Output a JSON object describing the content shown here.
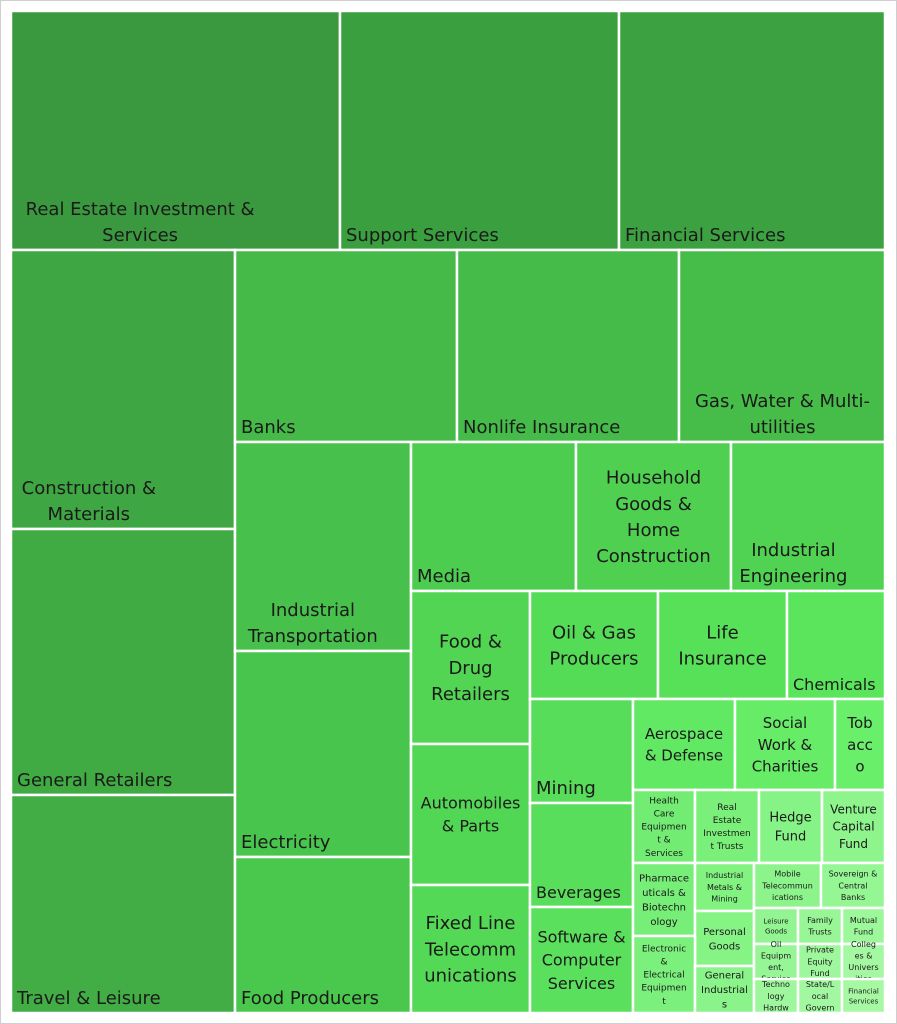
{
  "chart_data": {
    "type": "treemap",
    "colors": {
      "dark": "#3a993e",
      "light": "#a6f5a3",
      "border": "#ffffff",
      "text": "#1a1a1a"
    },
    "items": [
      {
        "label": "Real Estate Investment & Services",
        "color": "#3a993e"
      },
      {
        "label": "Support Services",
        "color": "#3a9f3f"
      },
      {
        "label": "Financial Services",
        "color": "#3ca140"
      },
      {
        "label": "Construction & Materials",
        "color": "#3ea642"
      },
      {
        "label": "General Retailers",
        "color": "#40aa43"
      },
      {
        "label": "Travel & Leisure",
        "color": "#41ad44"
      },
      {
        "label": "Banks",
        "color": "#45ba48"
      },
      {
        "label": "Nonlife Insurance",
        "color": "#45bc49"
      },
      {
        "label": "Gas, Water & Multi-utilities",
        "color": "#46bd49"
      },
      {
        "label": "Industrial Transportation",
        "color": "#47c14b"
      },
      {
        "label": "Electricity",
        "color": "#48c54c"
      },
      {
        "label": "Food Producers",
        "color": "#4ac84d"
      },
      {
        "label": "Media",
        "color": "#4dcd50"
      },
      {
        "label": "Household Goods & Home Construction",
        "color": "#4fd051"
      },
      {
        "label": "Industrial Engineering",
        "color": "#50d352"
      },
      {
        "label": "Food & Drug Retailers",
        "color": "#51d553"
      },
      {
        "label": "Automobiles & Parts",
        "color": "#52d754"
      },
      {
        "label": "Fixed Line Telecommunications",
        "color": "#53d955"
      },
      {
        "label": "Oil & Gas Producers",
        "color": "#55dc57"
      },
      {
        "label": "Life Insurance",
        "color": "#57e159"
      },
      {
        "label": "Chemicals",
        "color": "#5ae55c"
      },
      {
        "label": "Mining",
        "color": "#58dd5a"
      },
      {
        "label": "Beverages",
        "color": "#59de5b"
      },
      {
        "label": "Software & Computer Services",
        "color": "#5ae05c"
      },
      {
        "label": "Aerospace & Defense",
        "color": "#62e963"
      },
      {
        "label": "Social Work & Charities",
        "color": "#66ec67"
      },
      {
        "label": "Tobacco",
        "color": "#6aef6b"
      },
      {
        "label": "Health Care Equipment & Services",
        "color": "#72ec73"
      },
      {
        "label": "Real Estate Investment Trusts",
        "color": "#7af07a"
      },
      {
        "label": "Hedge Fund",
        "color": "#86f386"
      },
      {
        "label": "Venture Capital Fund",
        "color": "#8ef58d"
      },
      {
        "label": "Pharmaceuticals & Biotechnology",
        "color": "#76ee77"
      },
      {
        "label": "Industrial Metals & Mining",
        "color": "#82f281"
      },
      {
        "label": "Mobile Telecommunications",
        "color": "#8cf48b"
      },
      {
        "label": "Sovereign & Central Banks",
        "color": "#95f694"
      },
      {
        "label": "Personal Goods",
        "color": "#86f385"
      },
      {
        "label": "Leisure Goods",
        "color": "#92f591"
      },
      {
        "label": "Family Trusts",
        "color": "#98f697"
      },
      {
        "label": "Mutual Fund",
        "color": "#9df79b"
      },
      {
        "label": "Electronic & Electrical Equipment",
        "color": "#7cf07c"
      },
      {
        "label": "General Industrials",
        "color": "#8af389"
      },
      {
        "label": "Oil Equipment, Services & Distribution",
        "color": "#96f695"
      },
      {
        "label": "Private Equity Fund",
        "color": "#9ef79c"
      },
      {
        "label": "Colleges & Universities",
        "color": "#a4f8a2"
      },
      {
        "label": "Technology Hardware & Equipment",
        "color": "#9ef79d"
      },
      {
        "label": "State/Local Government",
        "color": "#a2f8a0"
      },
      {
        "label": "Financial Services",
        "color": "#a6f8a3"
      }
    ]
  }
}
